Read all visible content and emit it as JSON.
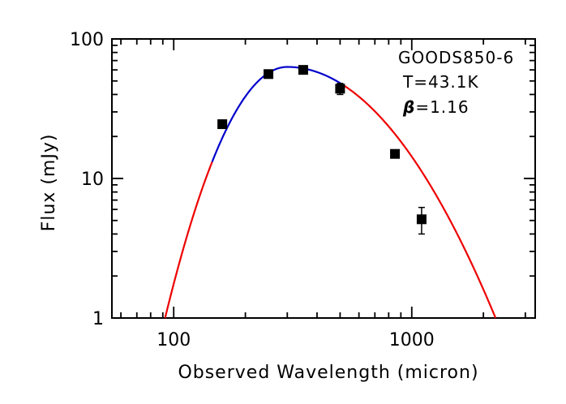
{
  "chart_data": {
    "type": "scatter",
    "title": "",
    "xlabel": "Observed Wavelength (micron)",
    "ylabel": "Flux (mJy)",
    "xscale": "log",
    "yscale": "log",
    "xlim": [
      55,
      3300
    ],
    "ylim": [
      1,
      100
    ],
    "x_tick_labels": [
      {
        "value": 100,
        "label": "100"
      },
      {
        "value": 1000,
        "label": "1000"
      }
    ],
    "y_tick_labels": [
      {
        "value": 1,
        "label": "1"
      },
      {
        "value": 10,
        "label": "10"
      },
      {
        "value": 100,
        "label": "100"
      }
    ],
    "grid": false,
    "annotations": {
      "source": "GOODS850-6",
      "temperature": "T=43.1K",
      "beta_symbol": "β",
      "beta_value": "=1.16"
    },
    "points": [
      {
        "x": 160,
        "y": 24.5,
        "yerr": 1.5
      },
      {
        "x": 250,
        "y": 56,
        "yerr": 3
      },
      {
        "x": 350,
        "y": 60,
        "yerr": 3
      },
      {
        "x": 500,
        "y": 44,
        "yerr": 4
      },
      {
        "x": 850,
        "y": 15,
        "yerr": 0.8
      },
      {
        "x": 1100,
        "y": 5.1,
        "yerr": 1.1
      }
    ],
    "model": {
      "peak_x": 300,
      "peak_y": 63,
      "fit_range": [
        145,
        520
      ],
      "fit_color": "#0000cc",
      "extrapolation_color": "#ee0000",
      "x_range": [
        92,
        2250
      ]
    },
    "marker_color": "#000000"
  }
}
